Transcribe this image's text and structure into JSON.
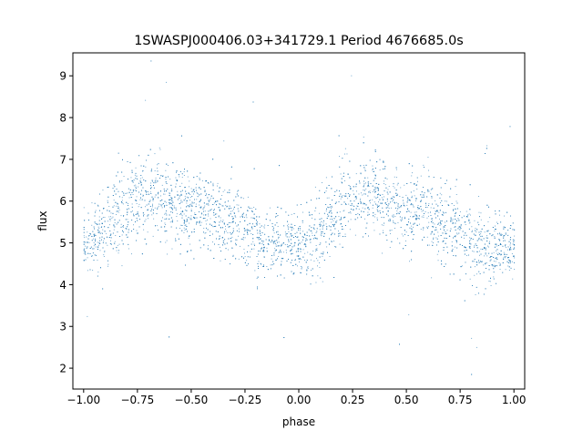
{
  "chart_data": {
    "type": "scatter",
    "title": "1SWASPJ000406.03+341729.1 Period 4676685.0s",
    "xlabel": "phase",
    "ylabel": "flux",
    "xlim": [
      -1.05,
      1.05
    ],
    "ylim": [
      1.5,
      9.55
    ],
    "xticks": [
      -1.0,
      -0.75,
      -0.5,
      -0.25,
      0.0,
      0.25,
      0.5,
      0.75,
      1.0
    ],
    "xtick_labels": [
      "−1.00",
      "−0.75",
      "−0.50",
      "−0.25",
      "0.00",
      "0.25",
      "0.50",
      "0.75",
      "1.00"
    ],
    "yticks": [
      2,
      3,
      4,
      5,
      6,
      7,
      8,
      9
    ],
    "ytick_labels": [
      "2",
      "3",
      "4",
      "5",
      "6",
      "7",
      "8",
      "9"
    ],
    "grid": false,
    "legend": "none",
    "marker_color": "#1f77b4",
    "series": [
      {
        "x": [
          -1.0,
          -0.95,
          -0.9,
          -0.85,
          -0.8,
          -0.75,
          -0.7,
          -0.65,
          -0.6,
          -0.55,
          -0.5,
          -0.45,
          -0.4,
          -0.35,
          -0.3,
          -0.25,
          -0.2,
          -0.15,
          -0.1,
          -0.05,
          0.0,
          0.05,
          0.1,
          0.15,
          0.2,
          0.25,
          0.3,
          0.35,
          0.4,
          0.45,
          0.5,
          0.55,
          0.6,
          0.65,
          0.7,
          0.75,
          0.8,
          0.85,
          0.9,
          0.95,
          1.0
        ],
        "y": [
          4.9,
          5.1,
          5.3,
          5.6,
          5.9,
          6.1,
          6.2,
          6.2,
          6.0,
          5.9,
          5.8,
          5.8,
          5.7,
          5.5,
          5.4,
          5.2,
          5.0,
          4.9,
          4.9,
          5.0,
          4.9,
          5.1,
          5.3,
          5.6,
          5.9,
          6.1,
          6.2,
          6.2,
          6.0,
          5.9,
          5.8,
          5.8,
          5.7,
          5.5,
          5.4,
          5.2,
          5.0,
          4.9,
          4.9,
          5.0,
          4.9
        ],
        "spread": [
          0.7,
          0.8,
          0.8,
          0.9,
          0.9,
          1.0,
          0.9,
          0.9,
          0.9,
          0.9,
          0.9,
          0.8,
          0.8,
          0.8,
          0.8,
          0.8,
          0.8,
          0.7,
          0.7,
          0.7,
          0.7,
          0.8,
          0.8,
          0.9,
          0.9,
          1.0,
          0.9,
          0.9,
          0.9,
          0.9,
          0.9,
          0.8,
          0.8,
          0.8,
          0.8,
          0.8,
          0.8,
          0.7,
          0.7,
          0.7,
          0.7
        ]
      }
    ]
  }
}
